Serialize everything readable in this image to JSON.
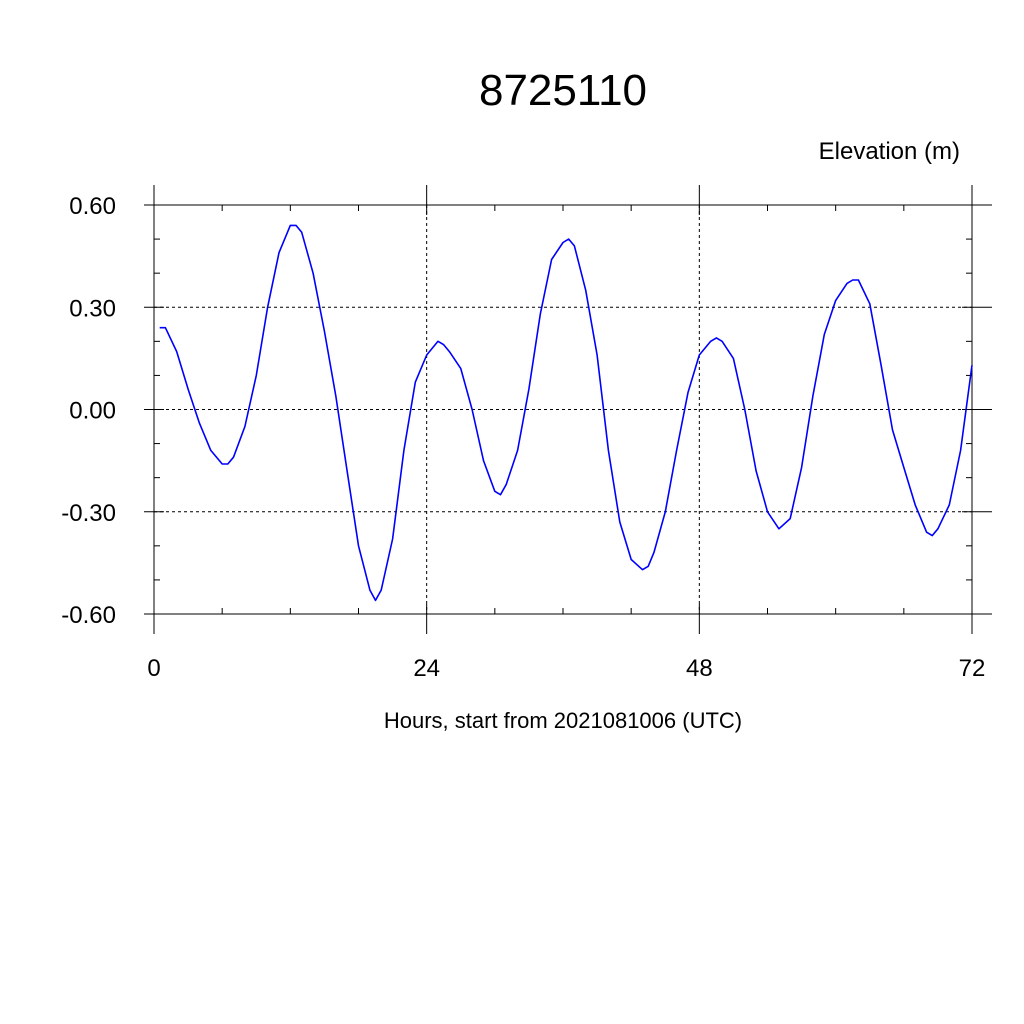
{
  "chart_data": {
    "type": "line",
    "title": "8725110",
    "ylabel": "Elevation (m)",
    "xlabel": "Hours, start from 2021081006 (UTC)",
    "xlim": [
      0,
      72
    ],
    "ylim": [
      -0.6,
      0.6
    ],
    "x_ticks": [
      0,
      24,
      48,
      72
    ],
    "x_tick_labels": [
      "0",
      "24",
      "48",
      "72"
    ],
    "y_ticks": [
      -0.6,
      -0.3,
      0.0,
      0.3,
      0.6
    ],
    "y_tick_labels": [
      "-0.60",
      "-0.30",
      "0.00",
      "0.30",
      "0.60"
    ],
    "grid": true,
    "line_color": "#0000ff",
    "series": [
      {
        "x": [
          0.5,
          1,
          2,
          3,
          4,
          5,
          6,
          6.5,
          7,
          8,
          9,
          10,
          11,
          12,
          12.5,
          13,
          14,
          15,
          16,
          17,
          18,
          19,
          19.5,
          20,
          21,
          22,
          23,
          24,
          25,
          25.5,
          26,
          27,
          28,
          29,
          30,
          30.5,
          31,
          32,
          33,
          34,
          35,
          36,
          36.5,
          37,
          38,
          39,
          40,
          41,
          42,
          43,
          43.5,
          44,
          45,
          46,
          47,
          48,
          49,
          49.5,
          50,
          51,
          52,
          53,
          54,
          55,
          56,
          57,
          58,
          59,
          60,
          61,
          61.5,
          62,
          63,
          64,
          65,
          66,
          67,
          68,
          68.5,
          69,
          70,
          71,
          72
        ],
        "y": [
          0.24,
          0.24,
          0.17,
          0.06,
          -0.04,
          -0.12,
          -0.16,
          -0.16,
          -0.14,
          -0.05,
          0.1,
          0.3,
          0.46,
          0.54,
          0.54,
          0.52,
          0.4,
          0.23,
          0.04,
          -0.18,
          -0.4,
          -0.53,
          -0.56,
          -0.53,
          -0.38,
          -0.12,
          0.08,
          0.16,
          0.2,
          0.19,
          0.17,
          0.12,
          0.0,
          -0.15,
          -0.24,
          -0.25,
          -0.22,
          -0.12,
          0.06,
          0.28,
          0.44,
          0.49,
          0.5,
          0.48,
          0.35,
          0.16,
          -0.12,
          -0.33,
          -0.44,
          -0.47,
          -0.46,
          -0.42,
          -0.3,
          -0.12,
          0.05,
          0.16,
          0.2,
          0.21,
          0.2,
          0.15,
          0.0,
          -0.18,
          -0.3,
          -0.35,
          -0.32,
          -0.17,
          0.04,
          0.22,
          0.32,
          0.37,
          0.38,
          0.38,
          0.31,
          0.13,
          -0.06,
          -0.17,
          -0.28,
          -0.36,
          -0.37,
          -0.35,
          -0.28,
          -0.12,
          0.13
        ]
      }
    ]
  }
}
